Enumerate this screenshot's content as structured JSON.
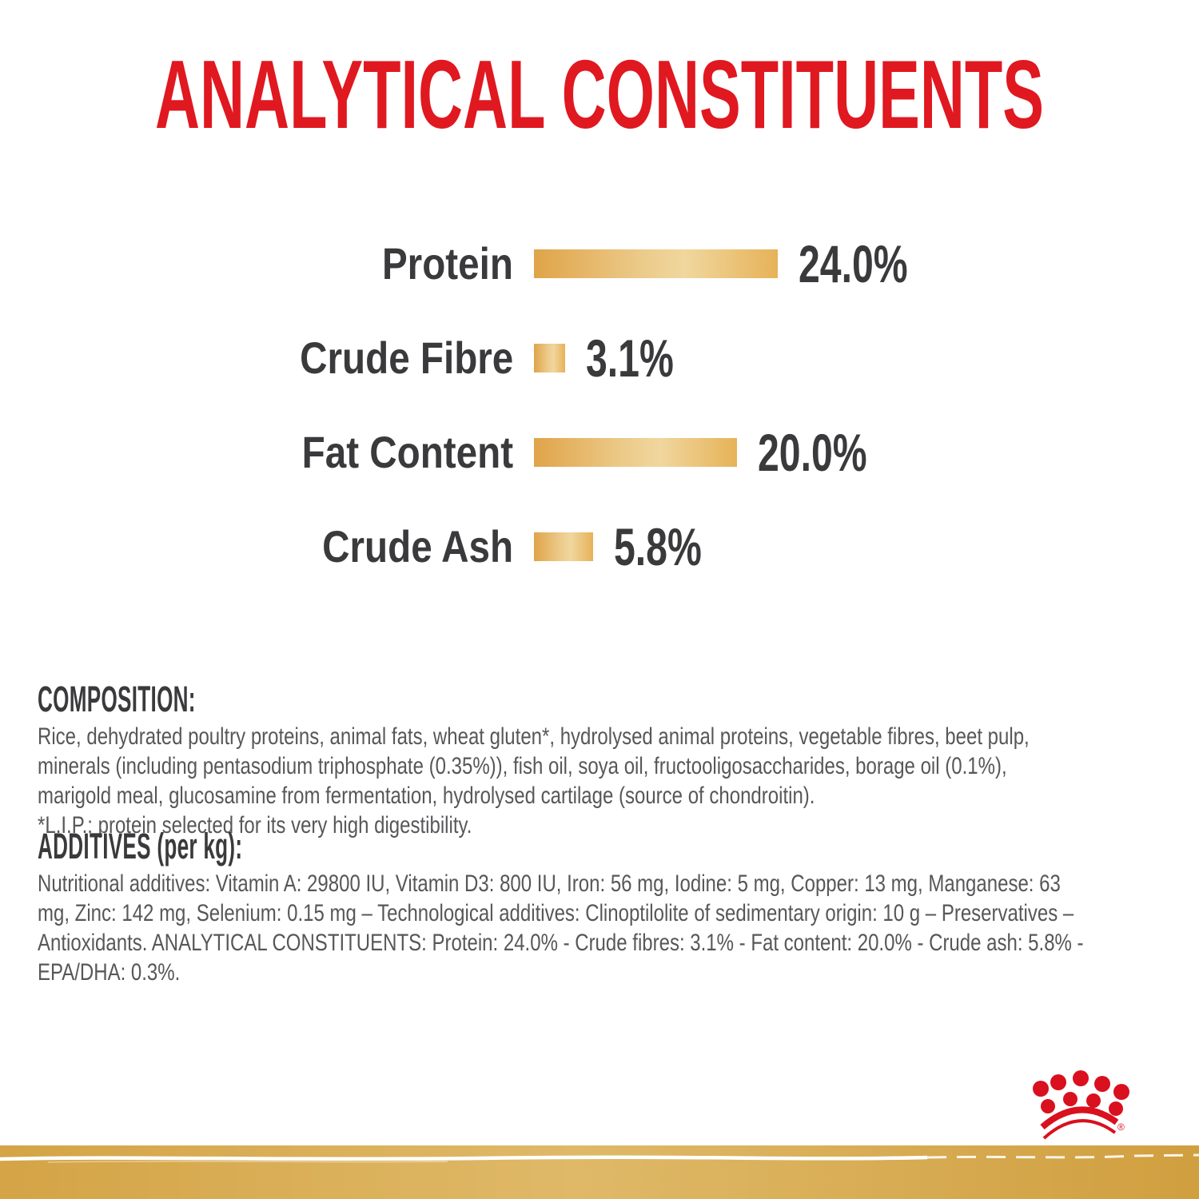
{
  "page": {
    "title": "ANALYTICAL CONSTITUENTS"
  },
  "colors": {
    "title-red": "#e01820",
    "crown-red": "#d9101e",
    "label-dark": "#3a3a3c",
    "body-gray": "#57575a",
    "bar-gold-dark": "#e0a449",
    "bar-gold-mid": "#eccb8b",
    "bar-gold-light": "#f0d79e",
    "bar-gold-end": "#e6b258",
    "band-gold-a": "#d4a446",
    "band-gold-b": "#dfb968",
    "band-gold-c": "#d09f3f"
  },
  "chart_data": {
    "type": "bar",
    "orientation": "horizontal",
    "title": "ANALYTICAL CONSTITUENTS",
    "categories": [
      "Protein",
      "Crude Fibre",
      "Fat Content",
      "Crude Ash"
    ],
    "values": [
      24.0,
      3.1,
      20.0,
      5.8
    ],
    "value_labels": [
      "24.0%",
      "3.1%",
      "20.0%",
      "5.8%"
    ],
    "unit": "%",
    "xlim": [
      0,
      24
    ],
    "grid": false,
    "legend": false,
    "bar_color": "gold-gradient"
  },
  "composition": {
    "heading": "COMPOSITION:",
    "lines": [
      "Rice, dehydrated poultry proteins, animal fats, wheat gluten*, hydrolysed animal proteins, vegetable fibres, beet pulp,",
      "minerals (including pentasodium triphosphate (0.35%)), fish oil, soya oil, fructooligosaccharides, borage oil (0.1%),",
      "marigold meal, glucosamine from fermentation, hydrolysed cartilage (source of chondroitin).",
      "*L.I.P.: protein selected for its very high digestibility."
    ]
  },
  "additives": {
    "heading": "ADDITIVES (per kg):",
    "lines": [
      "Nutritional additives: Vitamin A: 29800 IU, Vitamin D3: 800 IU, Iron: 56 mg, Iodine: 5 mg, Copper: 13 mg, Manganese: 63",
      "mg, Zinc: 142 mg, Selenium: 0.15 mg – Technological additives: Clinoptilolite of sedimentary origin: 10 g – Preservatives –",
      "Antioxidants. ANALYTICAL CONSTITUENTS: Protein: 24.0% - Crude fibres: 3.1% - Fat content: 20.0% - Crude ash: 5.8% -",
      "EPA/DHA: 0.3%."
    ]
  },
  "footer": {
    "brand_logo": "royal-canin-crown",
    "registered_mark": "®"
  }
}
